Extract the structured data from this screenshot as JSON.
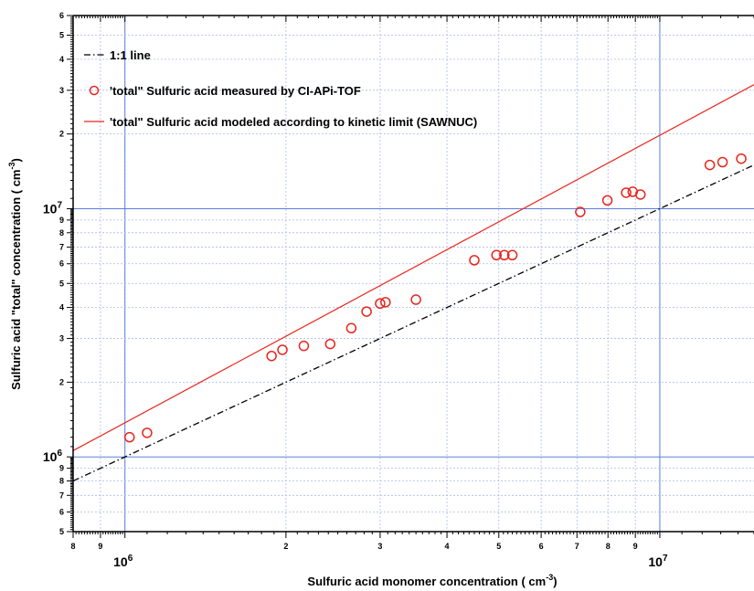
{
  "chart_data": {
    "type": "scatter",
    "scale": {
      "x": "log",
      "y": "log"
    },
    "xlim": [
      800000,
      15000000
    ],
    "ylim": [
      500000,
      60000000
    ],
    "xlabel": {
      "text": "Sulfuric acid monomer concentration ( cm",
      "sup": "-3",
      "end": ")"
    },
    "ylabel": {
      "text": "Sulfuric acid \"total\" concentration ( cm",
      "sup": "-3",
      "end": ")"
    },
    "x_ticks": {
      "minor_labels": [
        "8",
        "9",
        "2",
        "3",
        "4",
        "5",
        "6",
        "7",
        "8",
        "9"
      ],
      "decade_labels": [
        {
          "base": "10",
          "exp": "6"
        },
        {
          "base": "10",
          "exp": "7"
        }
      ]
    },
    "y_ticks": {
      "minor_labels": [
        "5",
        "6",
        "7",
        "8",
        "9",
        "2",
        "3",
        "4",
        "5",
        "6",
        "7",
        "8",
        "9",
        "2",
        "3",
        "4",
        "5",
        "6"
      ],
      "decade_labels": [
        {
          "base": "10",
          "exp": "6"
        },
        {
          "base": "10",
          "exp": "7"
        }
      ]
    },
    "grid": true,
    "legend_position": "top-left",
    "colors": {
      "measured": "#e8261c",
      "modeled": "#e8261c",
      "one_to_one": "#000000",
      "major_grid": "#5b7ee0",
      "minor_grid": "#a9b9ec"
    },
    "series": [
      {
        "name": "1:1 line",
        "kind": "line",
        "style": "dash-dot",
        "x": [
          800000,
          15000000
        ],
        "y": [
          800000,
          15000000
        ]
      },
      {
        "name": "'total\" Sulfuric acid measured by CI-APi-TOF",
        "kind": "scatter",
        "marker": "open-circle",
        "x": [
          1020000,
          1100000,
          1880000,
          1970000,
          2160000,
          2420000,
          2650000,
          2830000,
          3000000,
          3070000,
          3500000,
          4500000,
          4950000,
          5120000,
          5300000,
          7100000,
          7980000,
          8650000,
          8900000,
          9200000,
          12400000,
          13100000,
          14200000
        ],
        "y": [
          1200000,
          1250000,
          2550000,
          2700000,
          2800000,
          2850000,
          3300000,
          3850000,
          4150000,
          4200000,
          4300000,
          6200000,
          6500000,
          6500000,
          6500000,
          9700000,
          10800000,
          11600000,
          11700000,
          11400000,
          15000000,
          15400000,
          15900000
        ]
      },
      {
        "name": "'total\" Sulfuric acid modeled according to kinetic limit (SAWNUC)",
        "kind": "line",
        "style": "solid",
        "x": [
          800000,
          15000000
        ],
        "y": [
          1060000,
          31600000
        ]
      }
    ]
  }
}
